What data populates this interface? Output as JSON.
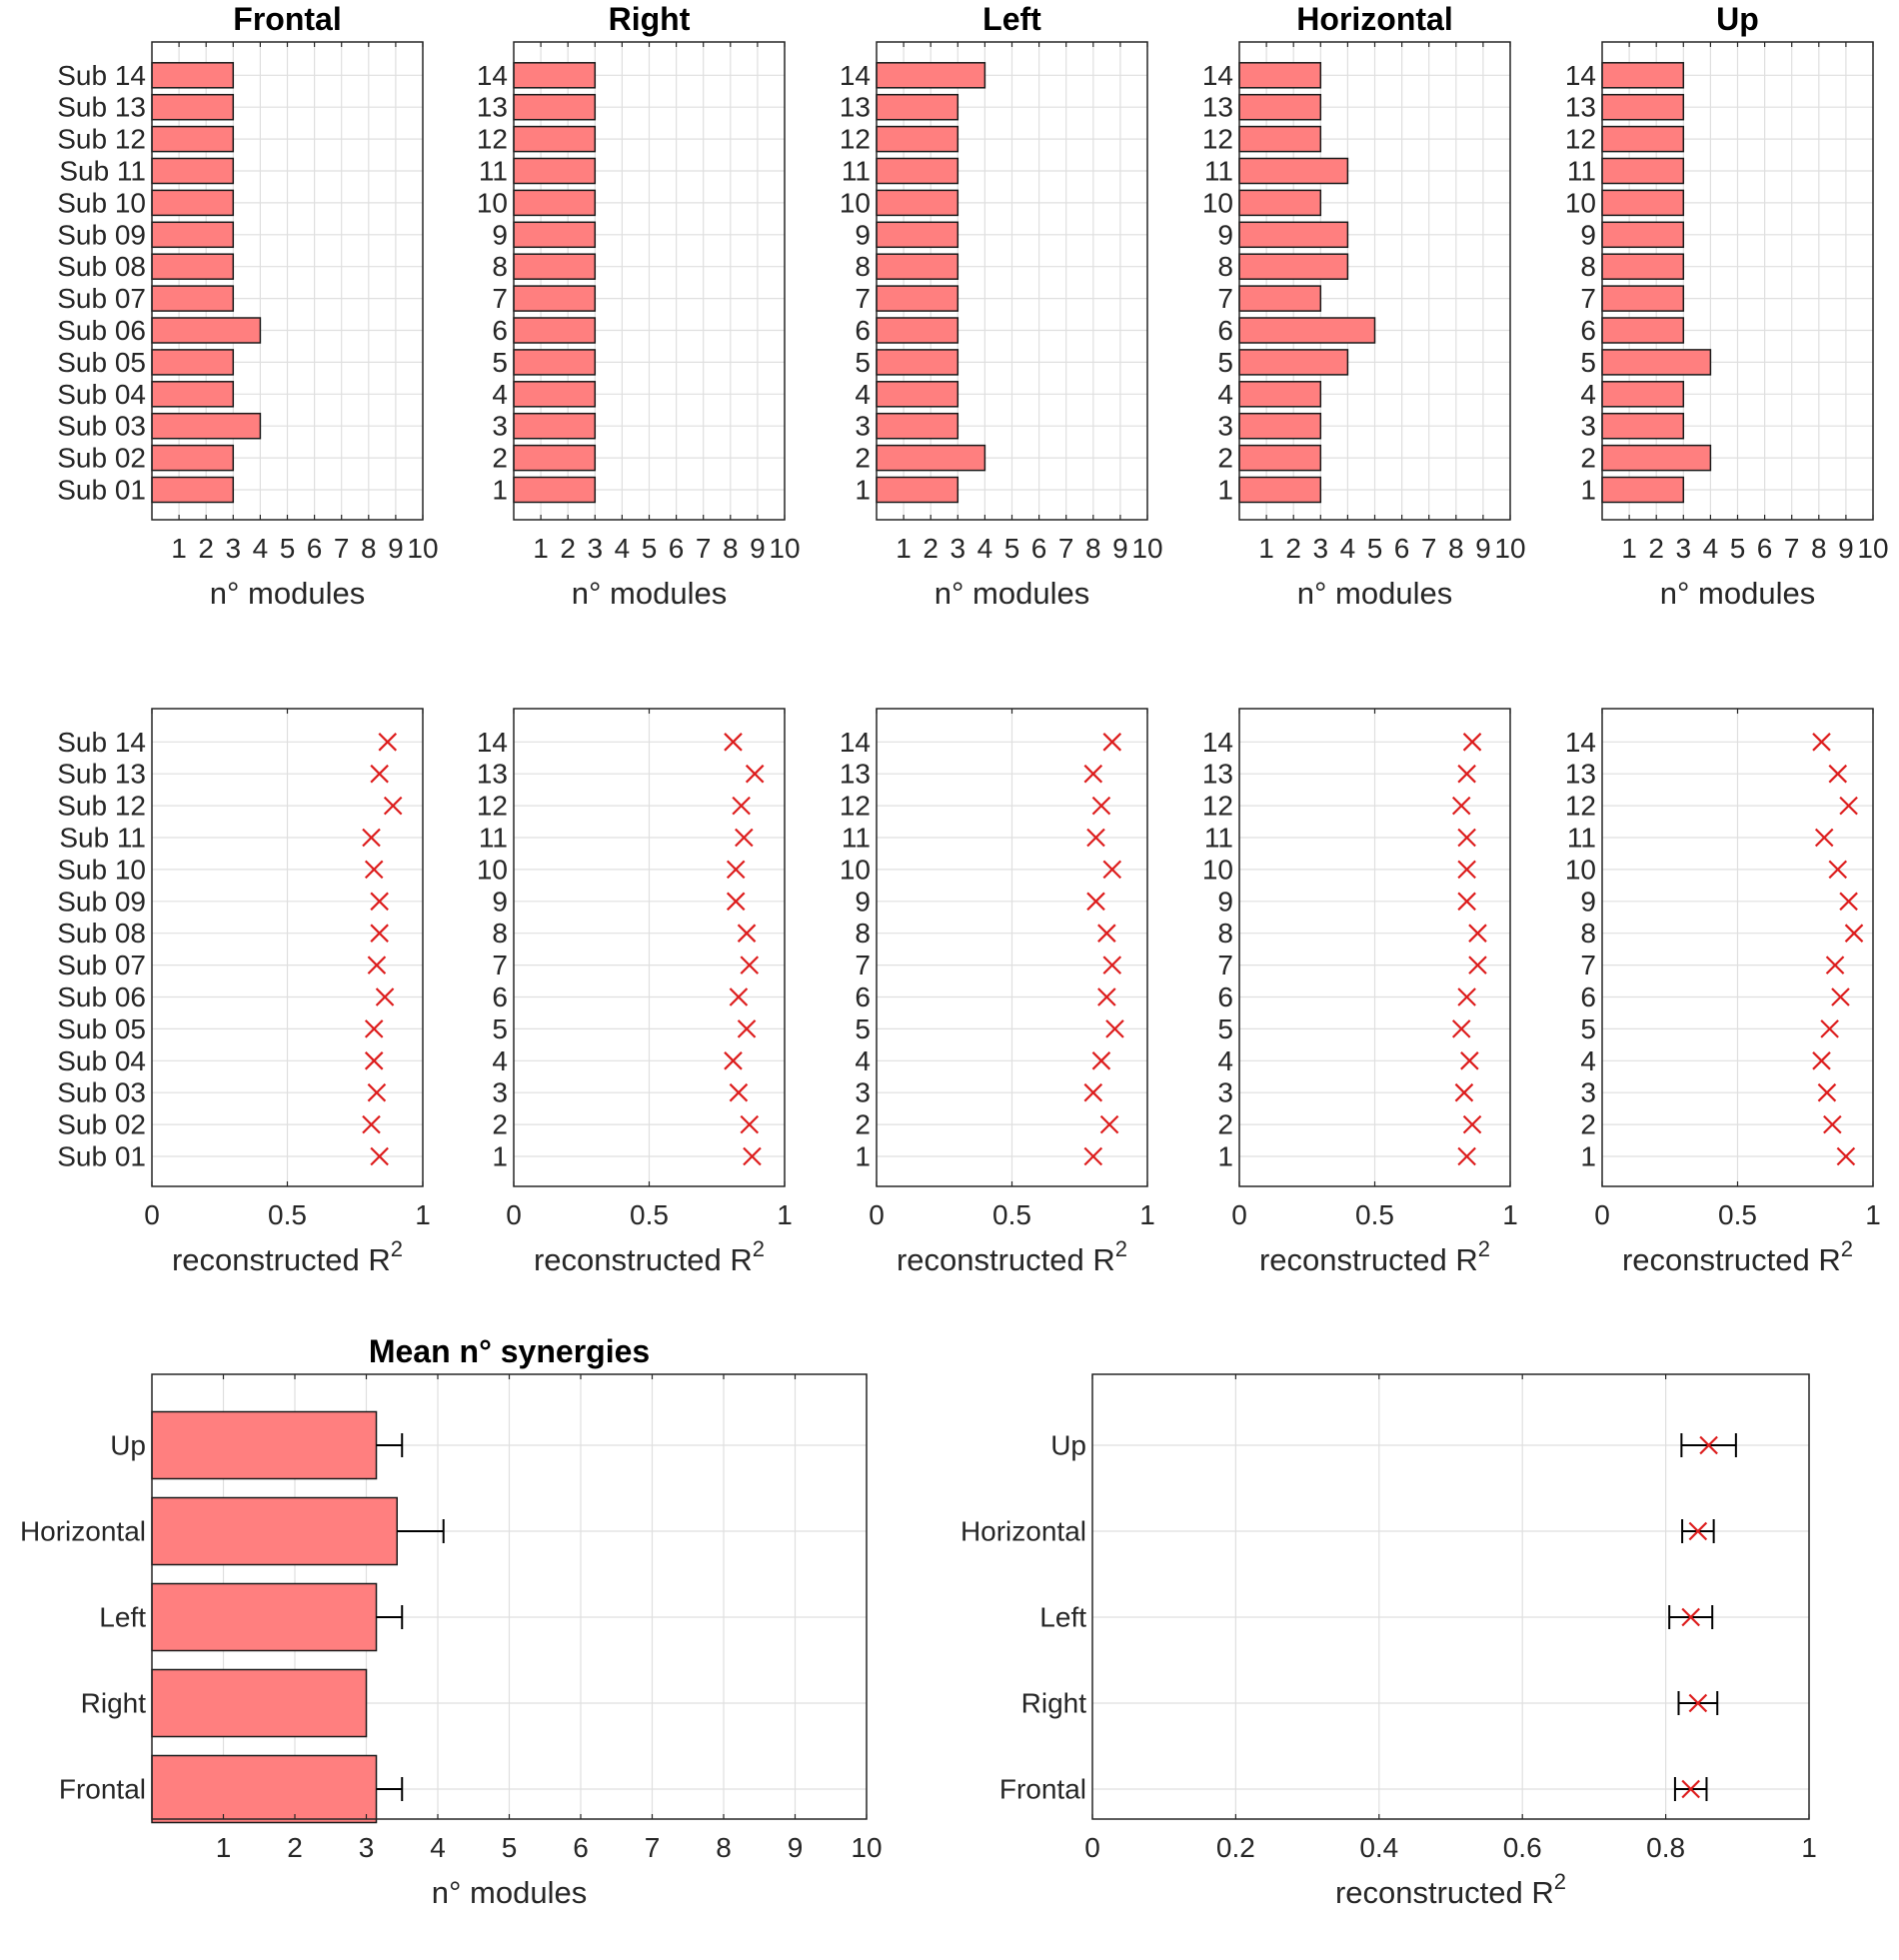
{
  "chart_data": [
    {
      "id": "frontal-modules",
      "type": "bar",
      "orientation": "horizontal",
      "title": "Frontal",
      "categories": [
        "Sub 01",
        "Sub 02",
        "Sub 03",
        "Sub 04",
        "Sub 05",
        "Sub 06",
        "Sub 07",
        "Sub 08",
        "Sub 09",
        "Sub 10",
        "Sub 11",
        "Sub 12",
        "Sub 13",
        "Sub 14"
      ],
      "values": [
        3,
        3,
        4,
        3,
        3,
        4,
        3,
        3,
        3,
        3,
        3,
        3,
        3,
        3
      ],
      "xlabel": "n° modules",
      "xlim": [
        0,
        10
      ],
      "xticks": [
        1,
        2,
        3,
        4,
        5,
        6,
        7,
        8,
        9,
        10
      ],
      "grid": true,
      "color": "#ff7f7f"
    },
    {
      "id": "right-modules",
      "type": "bar",
      "orientation": "horizontal",
      "title": "Right",
      "categories": [
        "1",
        "2",
        "3",
        "4",
        "5",
        "6",
        "7",
        "8",
        "9",
        "10",
        "11",
        "12",
        "13",
        "14"
      ],
      "values": [
        3,
        3,
        3,
        3,
        3,
        3,
        3,
        3,
        3,
        3,
        3,
        3,
        3,
        3
      ],
      "xlabel": "n° modules",
      "xlim": [
        0,
        10
      ],
      "xticks": [
        1,
        2,
        3,
        4,
        5,
        6,
        7,
        8,
        9,
        10
      ],
      "grid": true,
      "color": "#ff7f7f"
    },
    {
      "id": "left-modules",
      "type": "bar",
      "orientation": "horizontal",
      "title": "Left",
      "categories": [
        "1",
        "2",
        "3",
        "4",
        "5",
        "6",
        "7",
        "8",
        "9",
        "10",
        "11",
        "12",
        "13",
        "14"
      ],
      "values": [
        3,
        4,
        3,
        3,
        3,
        3,
        3,
        3,
        3,
        3,
        3,
        3,
        3,
        4
      ],
      "xlabel": "n° modules",
      "xlim": [
        0,
        10
      ],
      "xticks": [
        1,
        2,
        3,
        4,
        5,
        6,
        7,
        8,
        9,
        10
      ],
      "grid": true,
      "color": "#ff7f7f"
    },
    {
      "id": "horizontal-modules",
      "type": "bar",
      "orientation": "horizontal",
      "title": "Horizontal",
      "categories": [
        "1",
        "2",
        "3",
        "4",
        "5",
        "6",
        "7",
        "8",
        "9",
        "10",
        "11",
        "12",
        "13",
        "14"
      ],
      "values": [
        3,
        3,
        3,
        3,
        4,
        5,
        3,
        4,
        4,
        3,
        4,
        3,
        3,
        3
      ],
      "xlabel": "n° modules",
      "xlim": [
        0,
        10
      ],
      "xticks": [
        1,
        2,
        3,
        4,
        5,
        6,
        7,
        8,
        9,
        10
      ],
      "grid": true,
      "color": "#ff7f7f"
    },
    {
      "id": "up-modules",
      "type": "bar",
      "orientation": "horizontal",
      "title": "Up",
      "categories": [
        "1",
        "2",
        "3",
        "4",
        "5",
        "6",
        "7",
        "8",
        "9",
        "10",
        "11",
        "12",
        "13",
        "14"
      ],
      "values": [
        3,
        4,
        3,
        3,
        4,
        3,
        3,
        3,
        3,
        3,
        3,
        3,
        3,
        3
      ],
      "xlabel": "n° modules",
      "xlim": [
        0,
        10
      ],
      "xticks": [
        1,
        2,
        3,
        4,
        5,
        6,
        7,
        8,
        9,
        10
      ],
      "grid": true,
      "color": "#ff7f7f"
    },
    {
      "id": "frontal-r2",
      "type": "scatter",
      "marker": "x",
      "title": "",
      "categories": [
        "Sub 01",
        "Sub 02",
        "Sub 03",
        "Sub 04",
        "Sub 05",
        "Sub 06",
        "Sub 07",
        "Sub 08",
        "Sub 09",
        "Sub 10",
        "Sub 11",
        "Sub 12",
        "Sub 13",
        "Sub 14"
      ],
      "values": [
        0.84,
        0.81,
        0.83,
        0.82,
        0.82,
        0.86,
        0.83,
        0.84,
        0.84,
        0.82,
        0.81,
        0.89,
        0.84,
        0.87
      ],
      "xlabel": "reconstructed R",
      "xlabel_sup": "2",
      "xlim": [
        0,
        1
      ],
      "xticks": [
        0,
        0.5,
        1
      ],
      "grid": true,
      "color": "#dd1c1c"
    },
    {
      "id": "right-r2",
      "type": "scatter",
      "marker": "x",
      "title": "",
      "categories": [
        "1",
        "2",
        "3",
        "4",
        "5",
        "6",
        "7",
        "8",
        "9",
        "10",
        "11",
        "12",
        "13",
        "14"
      ],
      "values": [
        0.88,
        0.87,
        0.83,
        0.81,
        0.86,
        0.83,
        0.87,
        0.86,
        0.82,
        0.82,
        0.85,
        0.84,
        0.89,
        0.81
      ],
      "xlabel": "reconstructed R",
      "xlabel_sup": "2",
      "xlim": [
        0,
        1
      ],
      "xticks": [
        0,
        0.5,
        1
      ],
      "grid": true,
      "color": "#dd1c1c"
    },
    {
      "id": "left-r2",
      "type": "scatter",
      "marker": "x",
      "title": "",
      "categories": [
        "1",
        "2",
        "3",
        "4",
        "5",
        "6",
        "7",
        "8",
        "9",
        "10",
        "11",
        "12",
        "13",
        "14"
      ],
      "values": [
        0.8,
        0.86,
        0.8,
        0.83,
        0.88,
        0.85,
        0.87,
        0.85,
        0.81,
        0.87,
        0.81,
        0.83,
        0.8,
        0.87
      ],
      "xlabel": "reconstructed R",
      "xlabel_sup": "2",
      "xlim": [
        0,
        1
      ],
      "xticks": [
        0,
        0.5,
        1
      ],
      "grid": true,
      "color": "#dd1c1c"
    },
    {
      "id": "horizontal-r2",
      "type": "scatter",
      "marker": "x",
      "title": "",
      "categories": [
        "1",
        "2",
        "3",
        "4",
        "5",
        "6",
        "7",
        "8",
        "9",
        "10",
        "11",
        "12",
        "13",
        "14"
      ],
      "values": [
        0.84,
        0.86,
        0.83,
        0.85,
        0.82,
        0.84,
        0.88,
        0.88,
        0.84,
        0.84,
        0.84,
        0.82,
        0.84,
        0.86
      ],
      "xlabel": "reconstructed R",
      "xlabel_sup": "2",
      "xlim": [
        0,
        1
      ],
      "xticks": [
        0,
        0.5,
        1
      ],
      "grid": true,
      "color": "#dd1c1c"
    },
    {
      "id": "up-r2",
      "type": "scatter",
      "marker": "x",
      "title": "",
      "categories": [
        "1",
        "2",
        "3",
        "4",
        "5",
        "6",
        "7",
        "8",
        "9",
        "10",
        "11",
        "12",
        "13",
        "14"
      ],
      "values": [
        0.9,
        0.85,
        0.83,
        0.81,
        0.84,
        0.88,
        0.86,
        0.93,
        0.91,
        0.87,
        0.82,
        0.91,
        0.87,
        0.81
      ],
      "xlabel": "reconstructed R",
      "xlabel_sup": "2",
      "xlim": [
        0,
        1
      ],
      "xticks": [
        0,
        0.5,
        1
      ],
      "grid": true,
      "color": "#dd1c1c"
    },
    {
      "id": "mean-synergies",
      "type": "bar",
      "orientation": "horizontal",
      "title": "Mean n° synergies",
      "categories": [
        "Frontal",
        "Right",
        "Left",
        "Horizontal",
        "Up"
      ],
      "values": [
        3.14,
        3.0,
        3.14,
        3.43,
        3.14
      ],
      "errors": [
        0.36,
        0,
        0.36,
        0.65,
        0.36
      ],
      "xlabel": "n° modules",
      "xlim": [
        0,
        10
      ],
      "xticks": [
        1,
        2,
        3,
        4,
        5,
        6,
        7,
        8,
        9,
        10
      ],
      "grid": true,
      "color": "#ff7f7f"
    },
    {
      "id": "mean-r2",
      "type": "scatter",
      "marker": "x",
      "title": "",
      "categories": [
        "Frontal",
        "Right",
        "Left",
        "Horizontal",
        "Up"
      ],
      "values": [
        0.835,
        0.845,
        0.835,
        0.845,
        0.86
      ],
      "errors": [
        0.022,
        0.027,
        0.03,
        0.022,
        0.038
      ],
      "xlabel": "reconstructed R",
      "xlabel_sup": "2",
      "xlim": [
        0,
        1
      ],
      "xticks": [
        0,
        0.2,
        0.4,
        0.6,
        0.8,
        1
      ],
      "grid": true,
      "color": "#dd1c1c"
    }
  ]
}
